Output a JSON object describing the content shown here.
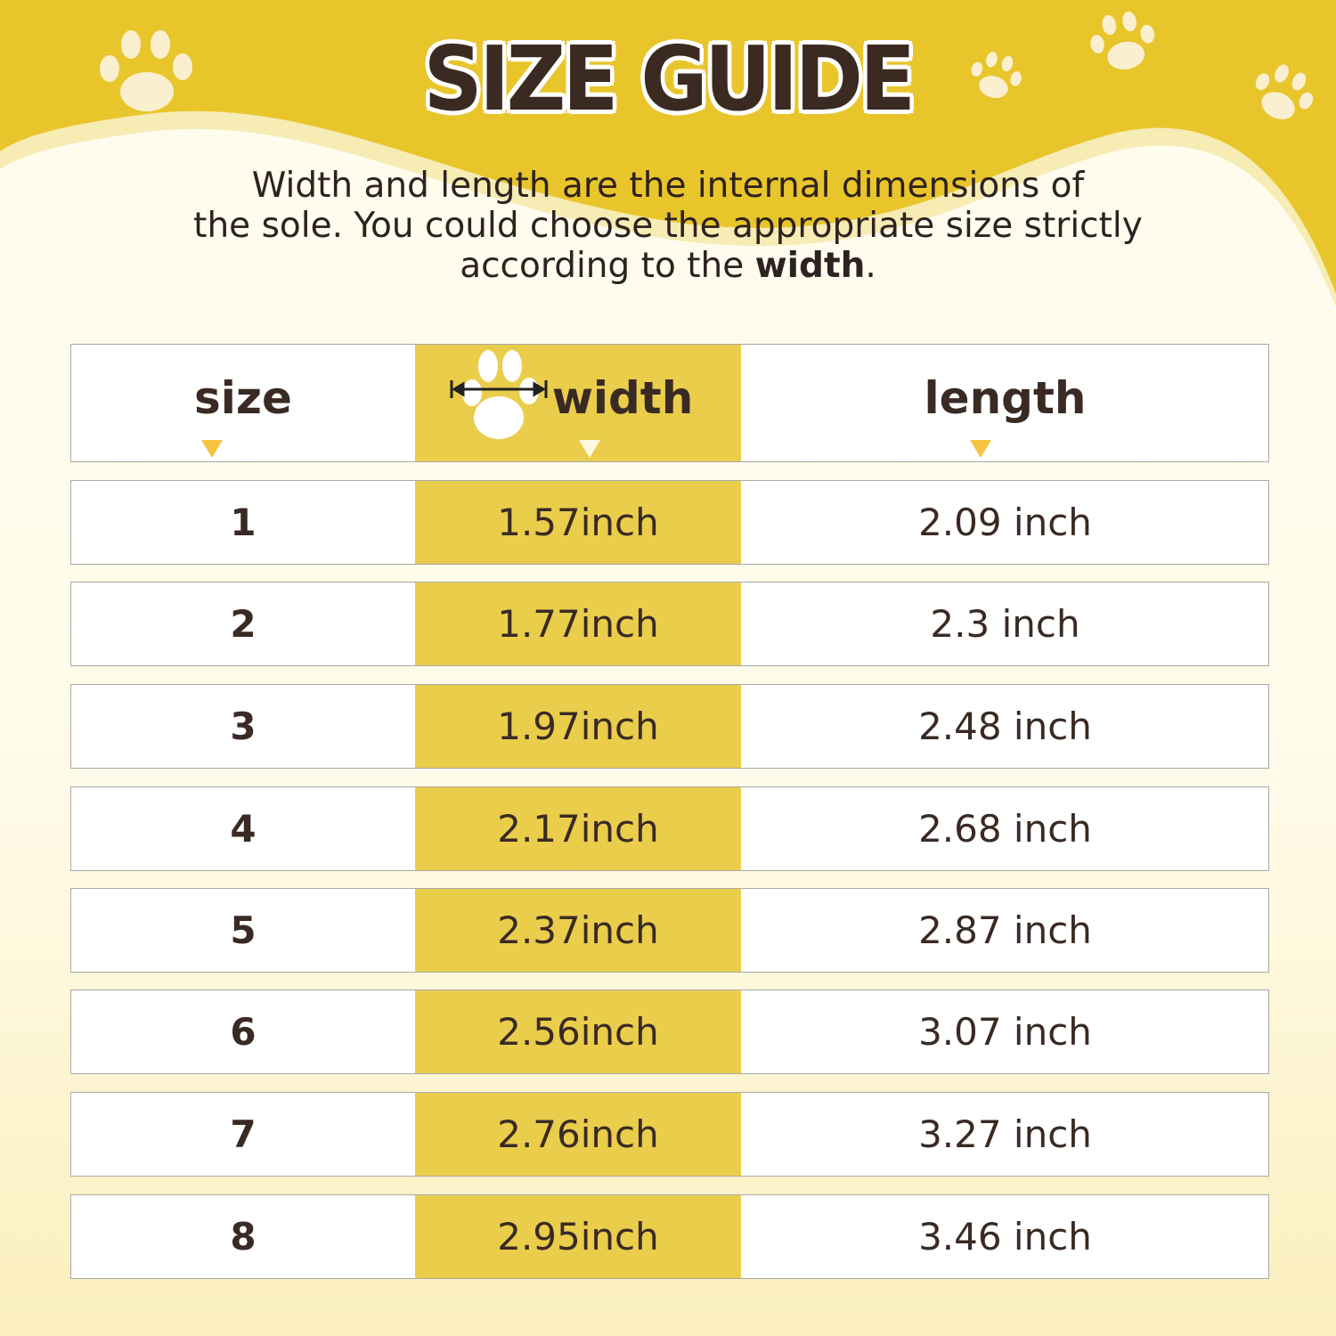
{
  "title": "SIZE GUIDE",
  "subtitle": {
    "line1": "Width and length are the internal dimensions of",
    "line2": "the sole. You could choose the appropriate size strictly",
    "line3_prefix": "according to the ",
    "line3_bold": "width",
    "line3_suffix": "."
  },
  "colors": {
    "brand_yellow": "#E9C52C",
    "column_highlight": "#E9CD4B",
    "text": "#3A2A24",
    "cream": "#FFFBE8"
  },
  "table": {
    "headers": [
      "size",
      "width",
      "length"
    ],
    "rows": [
      [
        "1",
        "1.57inch",
        "2.09 inch"
      ],
      [
        "2",
        "1.77inch",
        "2.3 inch"
      ],
      [
        "3",
        "1.97inch",
        "2.48 inch"
      ],
      [
        "4",
        "2.17inch",
        "2.68 inch"
      ],
      [
        "5",
        "2.37inch",
        "2.87 inch"
      ],
      [
        "6",
        "2.56inch",
        "3.07 inch"
      ],
      [
        "7",
        "2.76inch",
        "3.27 inch"
      ],
      [
        "8",
        "2.95inch",
        "3.46 inch"
      ]
    ]
  }
}
